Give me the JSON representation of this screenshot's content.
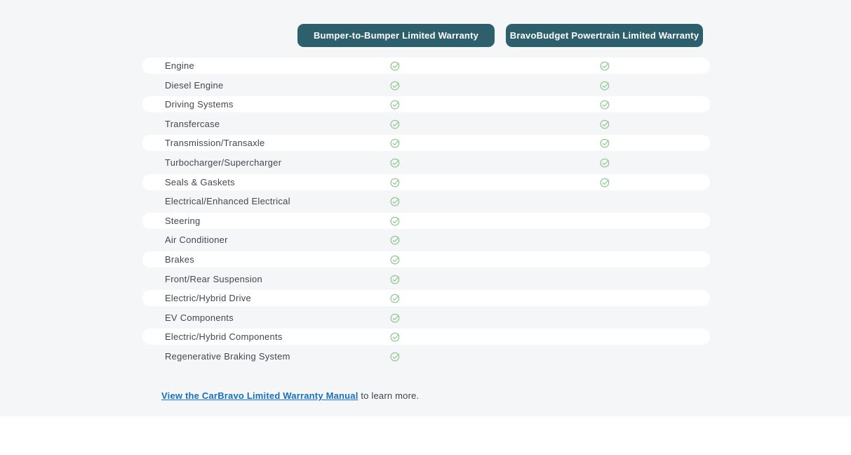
{
  "header": {
    "columns": [
      {
        "label": "Bumper-to-Bumper Limited Warranty"
      },
      {
        "label": "BravoBudget Powertrain Limited Warranty"
      }
    ]
  },
  "table": {
    "rows": [
      {
        "label": "Engine",
        "bumper_to_bumper": true,
        "powertrain": true
      },
      {
        "label": "Diesel Engine",
        "bumper_to_bumper": true,
        "powertrain": true
      },
      {
        "label": "Driving Systems",
        "bumper_to_bumper": true,
        "powertrain": true
      },
      {
        "label": "Transfercase",
        "bumper_to_bumper": true,
        "powertrain": true
      },
      {
        "label": "Transmission/Transaxle",
        "bumper_to_bumper": true,
        "powertrain": true
      },
      {
        "label": "Turbocharger/Supercharger",
        "bumper_to_bumper": true,
        "powertrain": true
      },
      {
        "label": "Seals & Gaskets",
        "bumper_to_bumper": true,
        "powertrain": true
      },
      {
        "label": "Electrical/Enhanced Electrical",
        "bumper_to_bumper": true,
        "powertrain": false
      },
      {
        "label": "Steering",
        "bumper_to_bumper": true,
        "powertrain": false
      },
      {
        "label": "Air Conditioner",
        "bumper_to_bumper": true,
        "powertrain": false
      },
      {
        "label": "Brakes",
        "bumper_to_bumper": true,
        "powertrain": false
      },
      {
        "label": "Front/Rear Suspension",
        "bumper_to_bumper": true,
        "powertrain": false
      },
      {
        "label": "Electric/Hybrid Drive",
        "bumper_to_bumper": true,
        "powertrain": false
      },
      {
        "label": "EV Components",
        "bumper_to_bumper": true,
        "powertrain": false
      },
      {
        "label": "Electric/Hybrid Components",
        "bumper_to_bumper": true,
        "powertrain": false
      },
      {
        "label": "Regenerative Braking System",
        "bumper_to_bumper": true,
        "powertrain": false
      }
    ]
  },
  "footer": {
    "link_text": "View the CarBravo Limited Warranty Manual",
    "suffix_text": " to learn more."
  },
  "colors": {
    "header_button_bg": "#2d5f6c",
    "check_green": "#94c795",
    "link_blue": "#1a6fb5",
    "page_bg": "#f5f6f8",
    "row_white": "#ffffff",
    "text": "#42474f"
  }
}
